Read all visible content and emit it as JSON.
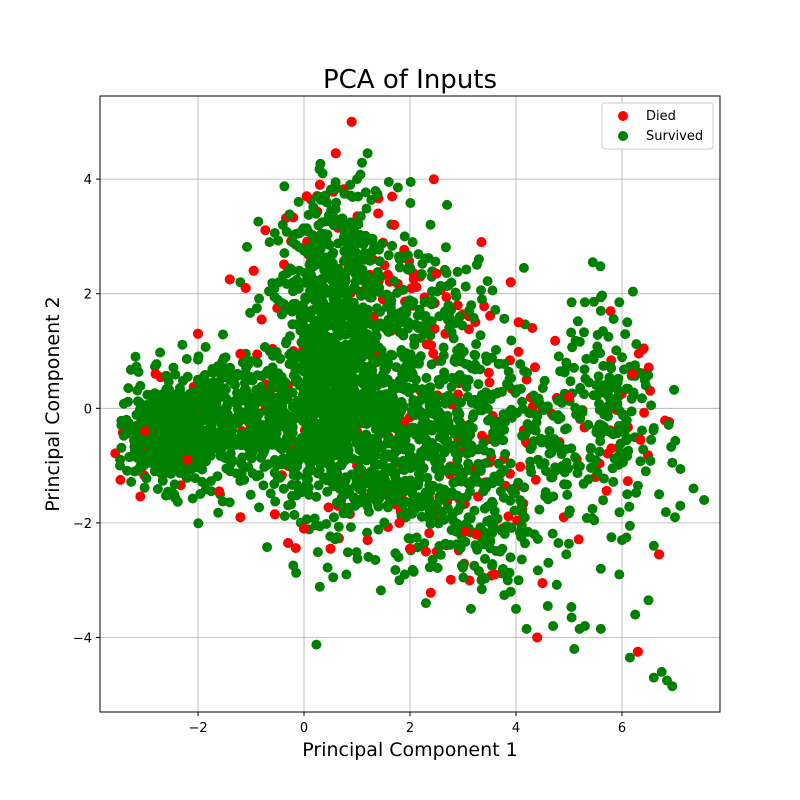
{
  "chart_data": {
    "type": "scatter",
    "title": "PCA of Inputs",
    "xlabel": "Principal Component 1",
    "ylabel": "Principal Component 2",
    "xlim": [
      -3.85,
      7.85
    ],
    "ylim": [
      -5.3,
      5.45
    ],
    "xticks": [
      -2,
      0,
      2,
      4,
      6
    ],
    "yticks": [
      -4,
      -2,
      0,
      2,
      4
    ],
    "xtick_labels": [
      "−2",
      "0",
      "2",
      "4",
      "6"
    ],
    "ytick_labels": [
      "−4",
      "−2",
      "0",
      "2",
      "4"
    ],
    "grid": true,
    "legend_position": "upper right",
    "series": [
      {
        "name": "Died",
        "color": "#ff0000",
        "points": [
          [
            0.9,
            5.0
          ],
          [
            0.6,
            4.45
          ],
          [
            1.7,
            3.2
          ],
          [
            3.35,
            2.9
          ],
          [
            -2.0,
            1.3
          ],
          [
            -1.2,
            0.95
          ],
          [
            -1.4,
            2.25
          ],
          [
            -0.95,
            2.4
          ],
          [
            0.05,
            3.7
          ],
          [
            0.3,
            3.9
          ],
          [
            1.4,
            3.4
          ],
          [
            2.5,
            2.35
          ],
          [
            3.9,
            2.2
          ],
          [
            4.05,
            1.5
          ],
          [
            -1.1,
            2.1
          ],
          [
            -0.8,
            1.55
          ],
          [
            -2.8,
            0.6
          ],
          [
            -3.0,
            -0.4
          ],
          [
            -2.2,
            -0.9
          ],
          [
            -1.6,
            -1.45
          ],
          [
            -1.2,
            -1.9
          ],
          [
            -0.55,
            -1.85
          ],
          [
            -0.3,
            -2.35
          ],
          [
            0.0,
            -2.1
          ],
          [
            0.5,
            -2.45
          ],
          [
            1.2,
            -2.3
          ],
          [
            1.8,
            -2.0
          ],
          [
            2.0,
            -2.45
          ],
          [
            2.3,
            -2.5
          ],
          [
            3.05,
            -2.15
          ],
          [
            3.25,
            -2.2
          ],
          [
            3.6,
            -2.9
          ],
          [
            4.5,
            -3.05
          ],
          [
            4.4,
            -4.0
          ],
          [
            6.3,
            -4.25
          ],
          [
            6.7,
            -2.55
          ],
          [
            6.35,
            -0.55
          ],
          [
            6.2,
            0.6
          ],
          [
            5.8,
            -0.7
          ],
          [
            5.0,
            0.2
          ],
          [
            4.6,
            -0.6
          ],
          [
            4.2,
            0.5
          ],
          [
            3.5,
            0.45
          ],
          [
            2.9,
            1.8
          ],
          [
            2.4,
            1.1
          ],
          [
            1.9,
            0.7
          ],
          [
            1.6,
            -0.5
          ],
          [
            1.0,
            -1.0
          ],
          [
            0.7,
            -1.6
          ],
          [
            0.2,
            -0.3
          ],
          [
            -0.3,
            0.4
          ],
          [
            -0.9,
            -0.3
          ],
          [
            -2.6,
            0.1
          ],
          [
            -2.5,
            -0.9
          ],
          [
            1.3,
            2.6
          ],
          [
            2.6,
            -1.1
          ],
          [
            3.8,
            -1.35
          ],
          [
            4.9,
            -1.9
          ],
          [
            5.5,
            -1.2
          ],
          [
            5.9,
            -0.4
          ],
          [
            2.2,
            0.3
          ],
          [
            0.8,
            2.0
          ],
          [
            -0.2,
            1.0
          ],
          [
            1.5,
            -1.5
          ],
          [
            3.0,
            -0.3
          ]
        ]
      },
      {
        "name": "Survived",
        "color": "#008000",
        "clusters": [
          {
            "cx": 0.55,
            "cy": 0.5,
            "sx": 0.55,
            "sy": 1.15,
            "n": 900
          },
          {
            "cx": -2.6,
            "cy": -0.45,
            "sx": 0.45,
            "sy": 0.45,
            "n": 380
          },
          {
            "cx": -1.1,
            "cy": -0.2,
            "sx": 0.85,
            "sy": 0.6,
            "n": 420
          },
          {
            "cx": 1.6,
            "cy": -0.8,
            "sx": 0.75,
            "sy": 0.8,
            "n": 330
          },
          {
            "cx": 2.6,
            "cy": 0.4,
            "sx": 0.7,
            "sy": 0.9,
            "n": 220
          },
          {
            "cx": 4.4,
            "cy": -0.5,
            "sx": 1.05,
            "sy": 0.95,
            "n": 210
          },
          {
            "cx": 5.8,
            "cy": 0.0,
            "sx": 0.5,
            "sy": 0.75,
            "n": 110
          },
          {
            "cx": 3.2,
            "cy": -2.0,
            "sx": 0.8,
            "sy": 0.55,
            "n": 120
          },
          {
            "cx": 0.6,
            "cy": 2.9,
            "sx": 0.6,
            "sy": 0.5,
            "n": 160
          },
          {
            "cx": 2.2,
            "cy": 1.8,
            "sx": 0.6,
            "sy": 0.5,
            "n": 70
          }
        ],
        "extra_points": [
          [
            1.2,
            4.45
          ],
          [
            1.6,
            3.95
          ],
          [
            0.35,
            4.1
          ],
          [
            1.0,
            4.0
          ],
          [
            2.7,
            3.55
          ],
          [
            3.3,
            2.6
          ],
          [
            4.15,
            2.45
          ],
          [
            5.45,
            2.55
          ],
          [
            5.05,
            1.85
          ],
          [
            5.3,
            1.85
          ],
          [
            5.6,
            1.7
          ],
          [
            5.95,
            1.85
          ],
          [
            6.1,
            1.5
          ],
          [
            6.45,
            0.4
          ],
          [
            6.55,
            0.05
          ],
          [
            6.95,
            -0.95
          ],
          [
            7.35,
            -1.4
          ],
          [
            7.55,
            -1.6
          ],
          [
            7.1,
            -1.7
          ],
          [
            7.0,
            -1.9
          ],
          [
            6.7,
            -1.5
          ],
          [
            6.55,
            -0.55
          ],
          [
            6.45,
            -1.1
          ],
          [
            6.6,
            -2.4
          ],
          [
            6.5,
            -3.35
          ],
          [
            6.25,
            -3.6
          ],
          [
            6.15,
            -4.35
          ],
          [
            6.6,
            -4.7
          ],
          [
            6.75,
            -4.6
          ],
          [
            6.85,
            -4.75
          ],
          [
            6.95,
            -4.85
          ],
          [
            5.95,
            -2.9
          ],
          [
            5.6,
            -2.8
          ],
          [
            5.6,
            -3.85
          ],
          [
            5.3,
            -3.8
          ],
          [
            5.05,
            -3.65
          ],
          [
            5.2,
            -3.85
          ],
          [
            5.1,
            -4.2
          ],
          [
            4.7,
            -3.8
          ],
          [
            4.6,
            -3.45
          ],
          [
            4.2,
            -3.85
          ],
          [
            4.0,
            -3.5
          ],
          [
            3.9,
            -3.2
          ],
          [
            4.05,
            -3.0
          ],
          [
            3.35,
            -3.0
          ],
          [
            3.15,
            -3.5
          ],
          [
            2.3,
            -3.4
          ],
          [
            1.9,
            -2.9
          ],
          [
            1.8,
            -3.0
          ],
          [
            0.8,
            -2.9
          ],
          [
            0.55,
            -2.95
          ],
          [
            6.0,
            -2.3
          ],
          [
            6.15,
            -2.05
          ],
          [
            5.8,
            -2.25
          ],
          [
            6.1,
            -1.5
          ],
          [
            6.3,
            -1.35
          ],
          [
            4.8,
            -2.35
          ],
          [
            4.95,
            -2.55
          ],
          [
            4.35,
            -2.2
          ],
          [
            3.7,
            -2.5
          ],
          [
            3.55,
            -2.75
          ],
          [
            -2.0,
            0.85
          ],
          [
            -2.45,
            -1.5
          ],
          [
            -3.3,
            -0.85
          ],
          [
            -3.35,
            -0.2
          ],
          [
            -3.1,
            0.1
          ],
          [
            -0.65,
            2.9
          ],
          [
            -1.2,
            2.2
          ],
          [
            -0.4,
            3.2
          ],
          [
            1.9,
            3.0
          ],
          [
            2.05,
            2.9
          ]
        ]
      }
    ]
  }
}
